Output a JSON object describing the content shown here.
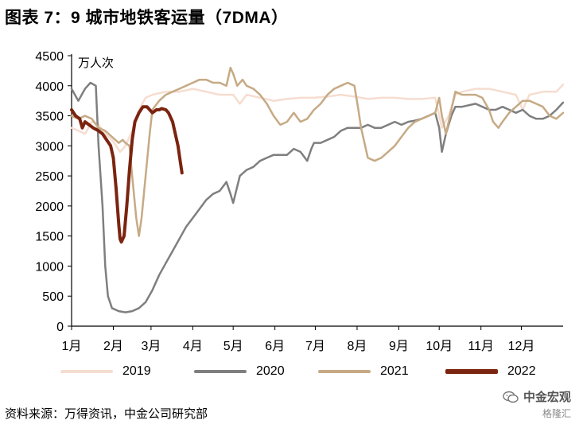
{
  "figure": {
    "title": "图表 7：9 城市地铁客运量（7DMA）",
    "unit_label": "万人次",
    "source": "资料来源：万得资讯，中金公司研究部",
    "watermark": {
      "line1": "中金宏观",
      "line2": "格隆汇"
    }
  },
  "chart_data": {
    "type": "line",
    "title": "图表 7：9 城市地铁客运量（7DMA）",
    "ylabel": "万人次",
    "xlabel": "",
    "ylim": [
      0,
      4500
    ],
    "yticks": [
      0,
      500,
      1000,
      1500,
      2000,
      2500,
      3000,
      3500,
      4000,
      4500
    ],
    "xlim": [
      0,
      365
    ],
    "xticks": [
      {
        "label": "1月",
        "day": 0
      },
      {
        "label": "2月",
        "day": 31
      },
      {
        "label": "3月",
        "day": 59
      },
      {
        "label": "4月",
        "day": 90
      },
      {
        "label": "5月",
        "day": 120
      },
      {
        "label": "6月",
        "day": 151
      },
      {
        "label": "7月",
        "day": 181
      },
      {
        "label": "8月",
        "day": 212
      },
      {
        "label": "9月",
        "day": 243
      },
      {
        "label": "10月",
        "day": 273
      },
      {
        "label": "11月",
        "day": 304
      },
      {
        "label": "12月",
        "day": 334
      }
    ],
    "grid": false,
    "legend_position": "bottom",
    "series": [
      {
        "name": "2019",
        "color": "#f6ddd0",
        "width": 2.5,
        "points": [
          [
            0,
            3300
          ],
          [
            5,
            3250
          ],
          [
            10,
            3200
          ],
          [
            15,
            3400
          ],
          [
            20,
            3350
          ],
          [
            25,
            3200
          ],
          [
            30,
            3100
          ],
          [
            33,
            3000
          ],
          [
            36,
            2900
          ],
          [
            40,
            3000
          ],
          [
            45,
            3250
          ],
          [
            50,
            3600
          ],
          [
            55,
            3800
          ],
          [
            60,
            3850
          ],
          [
            70,
            3900
          ],
          [
            80,
            3900
          ],
          [
            90,
            3950
          ],
          [
            100,
            3900
          ],
          [
            110,
            3850
          ],
          [
            120,
            3850
          ],
          [
            125,
            3700
          ],
          [
            130,
            3850
          ],
          [
            140,
            3800
          ],
          [
            150,
            3750
          ],
          [
            160,
            3780
          ],
          [
            170,
            3800
          ],
          [
            180,
            3800
          ],
          [
            190,
            3820
          ],
          [
            200,
            3850
          ],
          [
            210,
            3820
          ],
          [
            220,
            3780
          ],
          [
            230,
            3800
          ],
          [
            240,
            3800
          ],
          [
            250,
            3780
          ],
          [
            260,
            3780
          ],
          [
            270,
            3800
          ],
          [
            275,
            3300
          ],
          [
            280,
            3500
          ],
          [
            285,
            3850
          ],
          [
            290,
            3900
          ],
          [
            300,
            3950
          ],
          [
            310,
            3950
          ],
          [
            320,
            3900
          ],
          [
            330,
            3850
          ],
          [
            335,
            3600
          ],
          [
            340,
            3850
          ],
          [
            350,
            3900
          ],
          [
            360,
            3900
          ],
          [
            365,
            4020
          ]
        ]
      },
      {
        "name": "2020",
        "color": "#7f7f7f",
        "width": 2.5,
        "points": [
          [
            0,
            3950
          ],
          [
            5,
            3750
          ],
          [
            10,
            3950
          ],
          [
            14,
            4050
          ],
          [
            18,
            4000
          ],
          [
            20,
            3000
          ],
          [
            23,
            2000
          ],
          [
            25,
            1000
          ],
          [
            27,
            500
          ],
          [
            30,
            300
          ],
          [
            35,
            250
          ],
          [
            40,
            230
          ],
          [
            45,
            250
          ],
          [
            50,
            300
          ],
          [
            55,
            400
          ],
          [
            60,
            600
          ],
          [
            65,
            850
          ],
          [
            70,
            1050
          ],
          [
            75,
            1250
          ],
          [
            80,
            1450
          ],
          [
            85,
            1650
          ],
          [
            90,
            1800
          ],
          [
            95,
            1950
          ],
          [
            100,
            2100
          ],
          [
            105,
            2200
          ],
          [
            110,
            2250
          ],
          [
            115,
            2400
          ],
          [
            118,
            2200
          ],
          [
            120,
            2050
          ],
          [
            125,
            2500
          ],
          [
            130,
            2600
          ],
          [
            135,
            2650
          ],
          [
            140,
            2750
          ],
          [
            145,
            2800
          ],
          [
            150,
            2850
          ],
          [
            160,
            2850
          ],
          [
            165,
            2950
          ],
          [
            170,
            2900
          ],
          [
            175,
            2750
          ],
          [
            178,
            2950
          ],
          [
            180,
            3050
          ],
          [
            185,
            3050
          ],
          [
            190,
            3100
          ],
          [
            195,
            3150
          ],
          [
            200,
            3250
          ],
          [
            205,
            3300
          ],
          [
            210,
            3300
          ],
          [
            215,
            3300
          ],
          [
            220,
            3350
          ],
          [
            225,
            3300
          ],
          [
            230,
            3300
          ],
          [
            235,
            3350
          ],
          [
            240,
            3400
          ],
          [
            245,
            3350
          ],
          [
            250,
            3400
          ],
          [
            255,
            3420
          ],
          [
            260,
            3450
          ],
          [
            265,
            3500
          ],
          [
            270,
            3550
          ],
          [
            273,
            3300
          ],
          [
            275,
            2900
          ],
          [
            278,
            3200
          ],
          [
            282,
            3500
          ],
          [
            285,
            3650
          ],
          [
            290,
            3650
          ],
          [
            300,
            3700
          ],
          [
            305,
            3650
          ],
          [
            310,
            3600
          ],
          [
            315,
            3600
          ],
          [
            320,
            3650
          ],
          [
            325,
            3600
          ],
          [
            330,
            3550
          ],
          [
            335,
            3600
          ],
          [
            340,
            3500
          ],
          [
            345,
            3450
          ],
          [
            350,
            3450
          ],
          [
            355,
            3500
          ],
          [
            360,
            3600
          ],
          [
            365,
            3720
          ]
        ]
      },
      {
        "name": "2021",
        "color": "#c6aa85",
        "width": 2.5,
        "points": [
          [
            0,
            3500
          ],
          [
            5,
            3450
          ],
          [
            10,
            3500
          ],
          [
            15,
            3450
          ],
          [
            20,
            3300
          ],
          [
            25,
            3250
          ],
          [
            30,
            3150
          ],
          [
            35,
            3050
          ],
          [
            38,
            3100
          ],
          [
            40,
            3050
          ],
          [
            43,
            3000
          ],
          [
            45,
            2500
          ],
          [
            48,
            1800
          ],
          [
            50,
            1500
          ],
          [
            52,
            1800
          ],
          [
            55,
            2500
          ],
          [
            58,
            3200
          ],
          [
            60,
            3600
          ],
          [
            65,
            3750
          ],
          [
            70,
            3850
          ],
          [
            75,
            3900
          ],
          [
            80,
            3950
          ],
          [
            85,
            4000
          ],
          [
            90,
            4050
          ],
          [
            95,
            4100
          ],
          [
            100,
            4100
          ],
          [
            105,
            4050
          ],
          [
            110,
            4050
          ],
          [
            115,
            4000
          ],
          [
            118,
            4300
          ],
          [
            120,
            4200
          ],
          [
            123,
            4000
          ],
          [
            127,
            4100
          ],
          [
            130,
            4000
          ],
          [
            135,
            3950
          ],
          [
            140,
            3850
          ],
          [
            145,
            3700
          ],
          [
            150,
            3500
          ],
          [
            155,
            3350
          ],
          [
            160,
            3400
          ],
          [
            165,
            3550
          ],
          [
            170,
            3400
          ],
          [
            175,
            3450
          ],
          [
            180,
            3600
          ],
          [
            185,
            3700
          ],
          [
            190,
            3850
          ],
          [
            195,
            3950
          ],
          [
            200,
            4000
          ],
          [
            205,
            4050
          ],
          [
            210,
            4000
          ],
          [
            213,
            3600
          ],
          [
            215,
            3300
          ],
          [
            218,
            3000
          ],
          [
            220,
            2800
          ],
          [
            225,
            2750
          ],
          [
            230,
            2800
          ],
          [
            235,
            2900
          ],
          [
            240,
            3000
          ],
          [
            245,
            3150
          ],
          [
            250,
            3300
          ],
          [
            255,
            3400
          ],
          [
            260,
            3450
          ],
          [
            265,
            3500
          ],
          [
            270,
            3550
          ],
          [
            273,
            3800
          ],
          [
            275,
            3500
          ],
          [
            278,
            3200
          ],
          [
            282,
            3600
          ],
          [
            285,
            3900
          ],
          [
            290,
            3850
          ],
          [
            300,
            3850
          ],
          [
            305,
            3800
          ],
          [
            310,
            3600
          ],
          [
            313,
            3400
          ],
          [
            317,
            3300
          ],
          [
            320,
            3400
          ],
          [
            325,
            3550
          ],
          [
            330,
            3650
          ],
          [
            335,
            3750
          ],
          [
            340,
            3750
          ],
          [
            345,
            3700
          ],
          [
            350,
            3650
          ],
          [
            355,
            3500
          ],
          [
            360,
            3450
          ],
          [
            365,
            3550
          ]
        ]
      },
      {
        "name": "2022",
        "color": "#7b2410",
        "width": 4,
        "points": [
          [
            0,
            3600
          ],
          [
            3,
            3500
          ],
          [
            6,
            3450
          ],
          [
            8,
            3300
          ],
          [
            10,
            3400
          ],
          [
            13,
            3350
          ],
          [
            16,
            3300
          ],
          [
            20,
            3250
          ],
          [
            23,
            3200
          ],
          [
            26,
            3100
          ],
          [
            29,
            3000
          ],
          [
            31,
            2800
          ],
          [
            33,
            2300
          ],
          [
            35,
            1700
          ],
          [
            36,
            1450
          ],
          [
            37,
            1400
          ],
          [
            39,
            1500
          ],
          [
            41,
            2000
          ],
          [
            43,
            2600
          ],
          [
            45,
            3100
          ],
          [
            47,
            3400
          ],
          [
            50,
            3550
          ],
          [
            53,
            3650
          ],
          [
            56,
            3650
          ],
          [
            58,
            3600
          ],
          [
            60,
            3550
          ],
          [
            63,
            3600
          ],
          [
            65,
            3600
          ],
          [
            67,
            3620
          ],
          [
            70,
            3600
          ],
          [
            72,
            3550
          ],
          [
            75,
            3400
          ],
          [
            77,
            3200
          ],
          [
            79,
            3000
          ],
          [
            81,
            2700
          ],
          [
            82,
            2550
          ]
        ]
      }
    ]
  },
  "legend": [
    {
      "label": "2019",
      "color": "#f6ddd0",
      "thickness": 4
    },
    {
      "label": "2020",
      "color": "#7f7f7f",
      "thickness": 4
    },
    {
      "label": "2021",
      "color": "#c6aa85",
      "thickness": 4
    },
    {
      "label": "2022",
      "color": "#7b2410",
      "thickness": 6
    }
  ]
}
